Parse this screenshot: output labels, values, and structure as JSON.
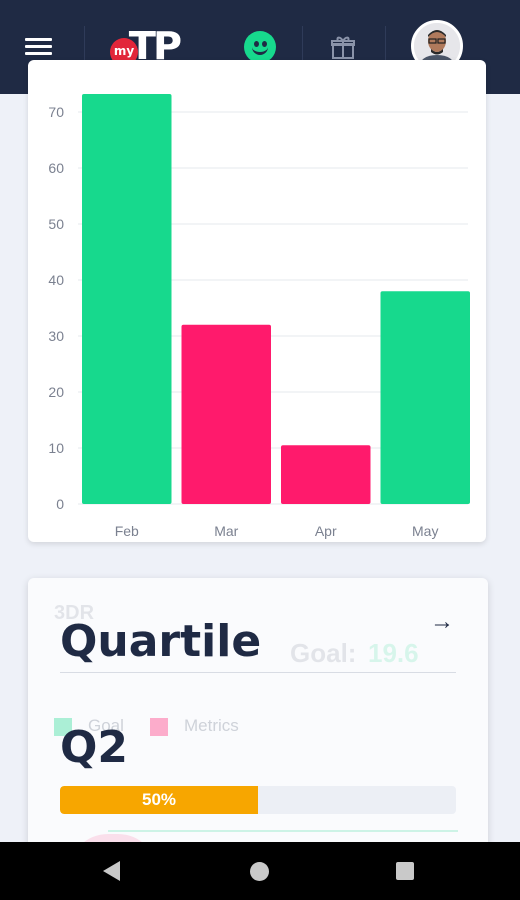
{
  "appbar": {
    "logo_prefix": "my",
    "logo_word": "TP",
    "icons": [
      "menu-icon",
      "logo",
      "smiley-icon",
      "gift-icon",
      "avatar"
    ],
    "colors": {
      "bar": "#1f2a44",
      "smiley": "#17d98d"
    }
  },
  "chart_data": {
    "type": "bar",
    "categories": [
      "Feb",
      "Mar",
      "Apr",
      "May"
    ],
    "values": [
      75,
      32,
      10.5,
      38
    ],
    "colors": [
      "#17d98d",
      "#ff1a6c",
      "#ff1a6c",
      "#17d98d"
    ],
    "yticks": [
      0,
      10,
      20,
      30,
      40,
      50,
      60,
      70
    ],
    "ylim": [
      0,
      70
    ],
    "grid": true,
    "title": "",
    "xlabel": "",
    "ylabel": ""
  },
  "quartile_card": {
    "title": "Quartile",
    "value": "Q2",
    "progress_percent": 50,
    "progress_label": "50%",
    "arrow_icon": "arrow-right-icon",
    "colors": {
      "progress": "#f7a600",
      "track": "#eceff5"
    },
    "background_faded": {
      "heading": "3DR",
      "goal_label": "Goal:",
      "goal_value": "19.6",
      "legend": [
        "Goal",
        "Metrics"
      ]
    }
  },
  "navbar": {
    "icons": [
      "back-icon",
      "home-icon",
      "recent-apps-icon"
    ]
  }
}
